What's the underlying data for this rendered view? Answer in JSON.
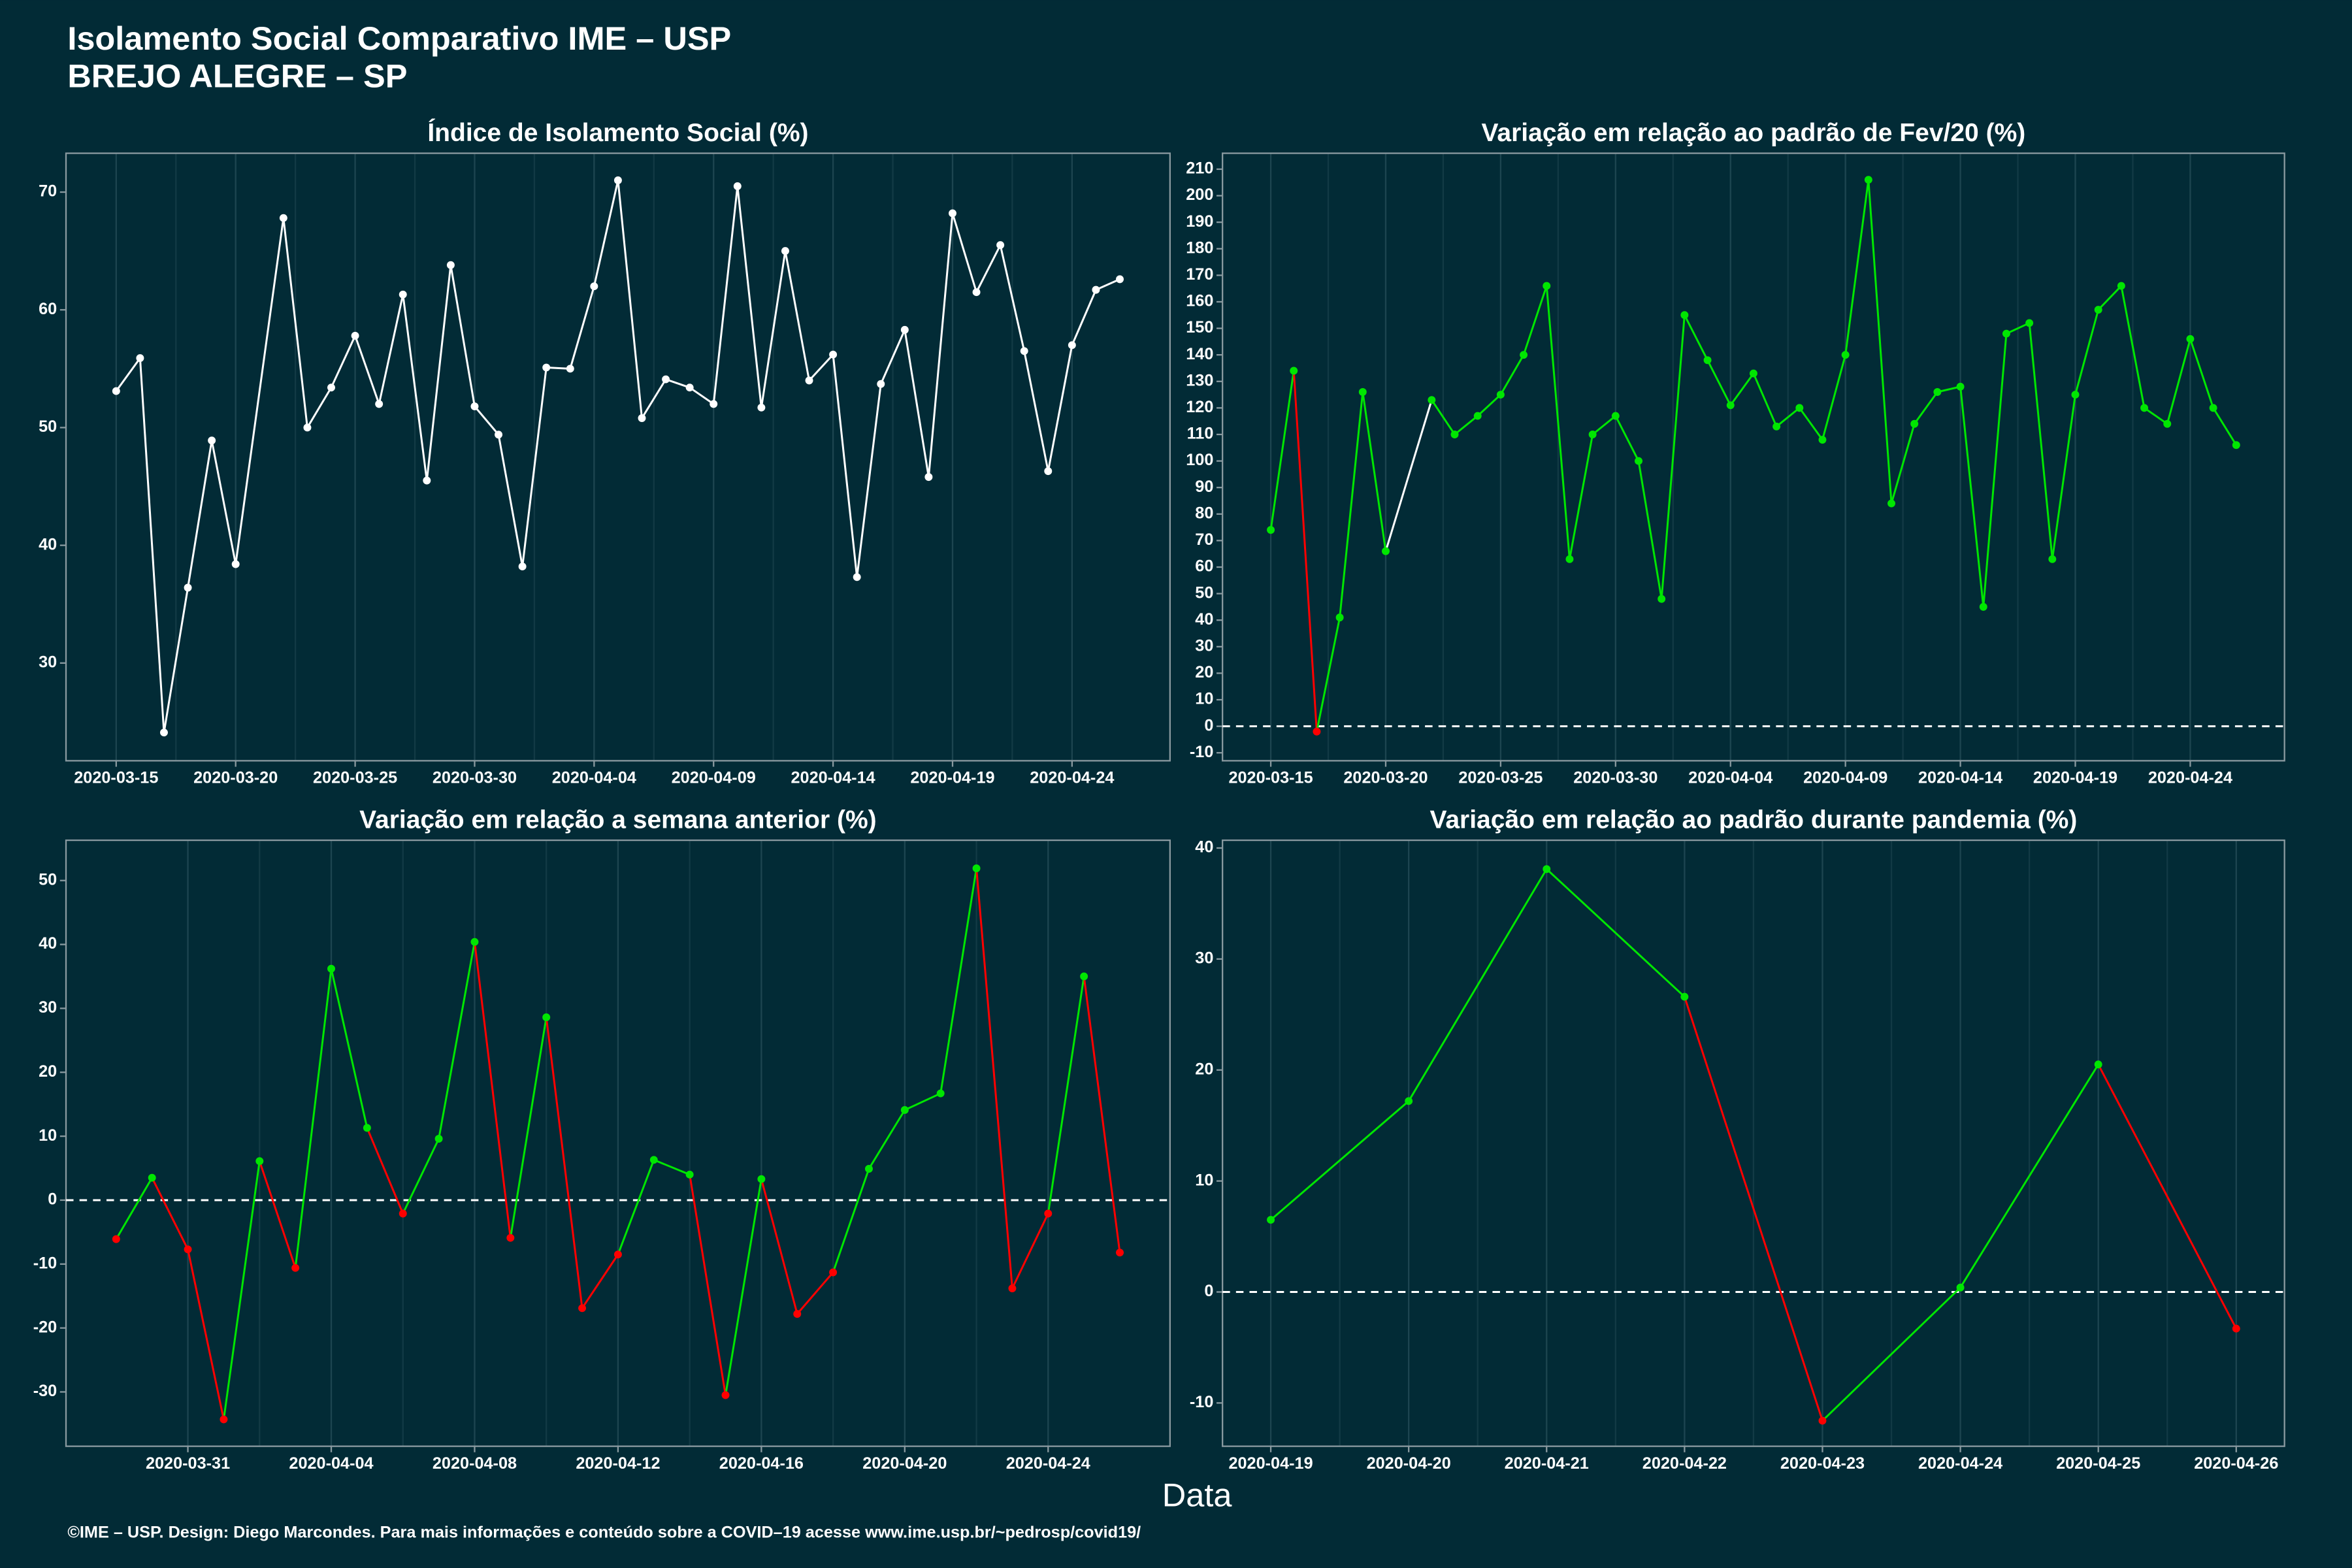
{
  "title": "Isolamento Social Comparativo IME – USP",
  "subtitle": "BREJO ALEGRE – SP",
  "x_label": "Data",
  "footer": "©IME – USP. Design: Diego Marcondes. Para mais informações e conteúdo sobre a COVID–19 acesse www.ime.usp.br/~pedrosp/covid19/",
  "chart_data": [
    {
      "type": "line",
      "title": "Índice de Isolamento Social (%)",
      "color": "#ffffff",
      "grid": "x",
      "x": [
        "2020-03-15",
        "2020-03-16",
        "2020-03-17",
        "2020-03-18",
        "2020-03-19",
        "2020-03-20",
        "2020-03-22",
        "2020-03-23",
        "2020-03-24",
        "2020-03-25",
        "2020-03-26",
        "2020-03-27",
        "2020-03-28",
        "2020-03-29",
        "2020-03-30",
        "2020-03-31",
        "2020-04-01",
        "2020-04-02",
        "2020-04-03",
        "2020-04-04",
        "2020-04-05",
        "2020-04-06",
        "2020-04-07",
        "2020-04-08",
        "2020-04-09",
        "2020-04-10",
        "2020-04-11",
        "2020-04-12",
        "2020-04-13",
        "2020-04-14",
        "2020-04-15",
        "2020-04-16",
        "2020-04-17",
        "2020-04-18",
        "2020-04-19",
        "2020-04-20",
        "2020-04-21",
        "2020-04-22",
        "2020-04-23",
        "2020-04-24",
        "2020-04-25",
        "2020-04-26"
      ],
      "values": [
        53.1,
        55.9,
        24.1,
        36.4,
        48.9,
        38.4,
        67.8,
        50.0,
        53.4,
        57.8,
        52.0,
        61.3,
        45.5,
        63.8,
        51.8,
        49.4,
        38.2,
        55.1,
        55.0,
        62.0,
        71.0,
        50.8,
        54.1,
        53.4,
        52.0,
        70.5,
        51.7,
        65.0,
        54.0,
        56.2,
        37.3,
        53.7,
        58.3,
        45.8,
        68.2,
        61.5,
        65.5,
        56.5,
        46.3,
        57.0,
        61.7,
        62.6
      ],
      "xlim": [
        "2020-03-12T21:36:00Z",
        "2020-04-28T02:24:00Z"
      ],
      "xticks": [
        "2020-03-15",
        "2020-03-20",
        "2020-03-25",
        "2020-03-30",
        "2020-04-04",
        "2020-04-09",
        "2020-04-14",
        "2020-04-19",
        "2020-04-24"
      ],
      "ylim": [
        21.7,
        73.3
      ],
      "yticks": [
        30,
        40,
        50,
        60,
        70
      ]
    },
    {
      "type": "line",
      "title": "Variação em relação ao padrão de Fev/20 (%)",
      "pos_color": "#00e600",
      "neg_color": "#ff0000",
      "gap_color": "#ffffff",
      "hline": 0,
      "grid": "x",
      "x": [
        "2020-03-15",
        "2020-03-16",
        "2020-03-17",
        "2020-03-18",
        "2020-03-19",
        "2020-03-20",
        "2020-03-22",
        "2020-03-23",
        "2020-03-24",
        "2020-03-25",
        "2020-03-26",
        "2020-03-27",
        "2020-03-28",
        "2020-03-29",
        "2020-03-30",
        "2020-03-31",
        "2020-04-01",
        "2020-04-02",
        "2020-04-03",
        "2020-04-04",
        "2020-04-05",
        "2020-04-06",
        "2020-04-07",
        "2020-04-08",
        "2020-04-09",
        "2020-04-10",
        "2020-04-11",
        "2020-04-12",
        "2020-04-13",
        "2020-04-14",
        "2020-04-15",
        "2020-04-16",
        "2020-04-17",
        "2020-04-18",
        "2020-04-19",
        "2020-04-20",
        "2020-04-21",
        "2020-04-22",
        "2020-04-23",
        "2020-04-24",
        "2020-04-25",
        "2020-04-26"
      ],
      "values": [
        74,
        134,
        -2,
        41,
        126,
        66,
        123,
        110,
        117,
        125,
        140,
        166,
        63,
        110,
        117,
        100,
        48,
        155,
        138,
        121,
        133,
        113,
        120,
        108,
        140,
        206,
        84,
        114,
        126,
        128,
        45,
        148,
        152,
        63,
        125,
        157,
        166,
        120,
        114,
        146,
        120,
        106
      ],
      "xlim": [
        "2020-03-12T21:36:00Z",
        "2020-04-28T02:24:00Z"
      ],
      "xticks": [
        "2020-03-15",
        "2020-03-20",
        "2020-03-25",
        "2020-03-30",
        "2020-04-04",
        "2020-04-09",
        "2020-04-14",
        "2020-04-19",
        "2020-04-24"
      ],
      "ylim": [
        -13,
        216
      ],
      "yticks": [
        -10,
        0,
        10,
        20,
        30,
        40,
        50,
        60,
        70,
        80,
        90,
        100,
        110,
        120,
        130,
        140,
        150,
        160,
        170,
        180,
        190,
        200,
        210
      ]
    },
    {
      "type": "line",
      "title": "Variação em relação a semana anterior (%)",
      "pos_color": "#00e600",
      "neg_color": "#ff0000",
      "hline": 0,
      "grid": "x",
      "x": [
        "2020-03-29",
        "2020-03-30",
        "2020-03-31",
        "2020-04-01",
        "2020-04-02",
        "2020-04-03",
        "2020-04-04",
        "2020-04-05",
        "2020-04-06",
        "2020-04-07",
        "2020-04-08",
        "2020-04-09",
        "2020-04-10",
        "2020-04-11",
        "2020-04-12",
        "2020-04-13",
        "2020-04-14",
        "2020-04-15",
        "2020-04-16",
        "2020-04-17",
        "2020-04-18",
        "2020-04-19",
        "2020-04-20",
        "2020-04-21",
        "2020-04-22",
        "2020-04-23",
        "2020-04-24",
        "2020-04-25",
        "2020-04-26"
      ],
      "values": [
        -6.1,
        3.5,
        -7.7,
        -34.3,
        6.1,
        -10.6,
        36.2,
        11.3,
        -2.1,
        9.6,
        40.4,
        -5.9,
        28.6,
        -16.9,
        -8.5,
        6.3,
        4.0,
        -30.5,
        3.3,
        -17.8,
        -11.3,
        4.9,
        14.1,
        16.7,
        51.9,
        -13.8,
        -2.1,
        35.0,
        -8.2
      ],
      "xlim": [
        "2020-03-27T14:24:00Z",
        "2020-04-27T09:36:00Z"
      ],
      "xticks": [
        "2020-03-31",
        "2020-04-04",
        "2020-04-08",
        "2020-04-12",
        "2020-04-16",
        "2020-04-20",
        "2020-04-24"
      ],
      "ylim": [
        -38.5,
        56.3
      ],
      "yticks": [
        -30,
        -20,
        -10,
        0,
        10,
        20,
        30,
        40,
        50
      ]
    },
    {
      "type": "line",
      "title": "Variação em relação ao padrão durante pandemia (%)",
      "pos_color": "#00e600",
      "neg_color": "#ff0000",
      "hline": 0,
      "grid": "x",
      "x": [
        "2020-04-19",
        "2020-04-20",
        "2020-04-21",
        "2020-04-22",
        "2020-04-23",
        "2020-04-24",
        "2020-04-25",
        "2020-04-26"
      ],
      "values": [
        6.5,
        17.2,
        38.1,
        26.6,
        -11.6,
        0.4,
        20.5,
        -3.3
      ],
      "xlim": [
        "2020-04-18T15:36:00Z",
        "2020-04-26T08:24:00Z"
      ],
      "xticks": [
        "2020-04-19",
        "2020-04-20",
        "2020-04-21",
        "2020-04-22",
        "2020-04-23",
        "2020-04-24",
        "2020-04-25",
        "2020-04-26"
      ],
      "ylim": [
        -13.9,
        40.7
      ],
      "yticks": [
        -10,
        0,
        10,
        20,
        30,
        40
      ]
    }
  ]
}
